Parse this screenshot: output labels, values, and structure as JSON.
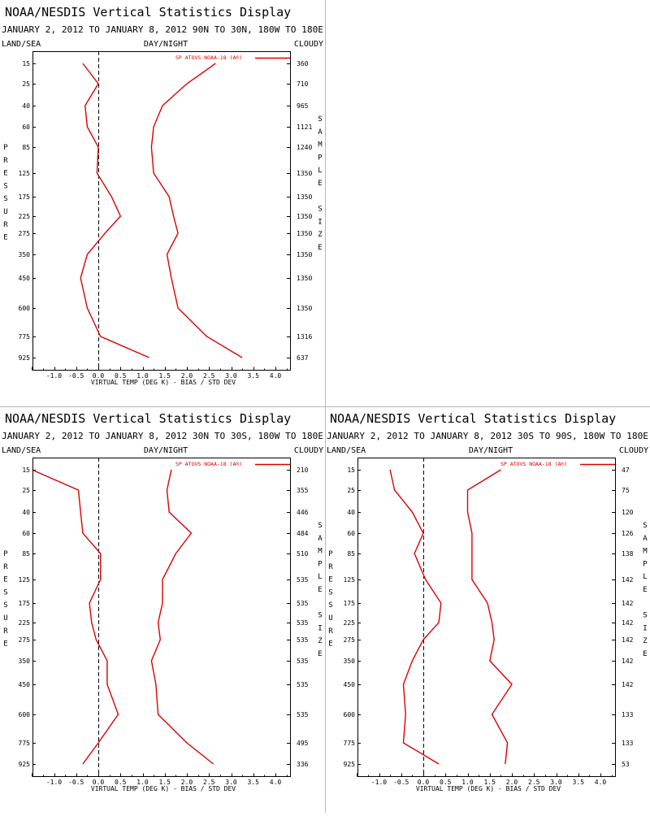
{
  "page": {
    "header_labels": {
      "left": "LAND/SEA",
      "center": "DAY/NIGHT",
      "right": "CLOUDY"
    },
    "y_axis_label": "PRESSURE",
    "right_axis_label": "SAMPLE SIZE",
    "x_axis_label": "VIRTUAL TEMP (DEG K) - BIAS / STD DEV",
    "legend_label": "SP ATOVS NOAA-18 (A®)",
    "series_color": "#dd0000"
  },
  "chart_data": [
    {
      "type": "line",
      "title": "NOAA/NESDIS Vertical Statistics Display",
      "subtitle": "JANUARY 2, 2012 TO JANUARY 8, 2012 90N TO 30N, 180W TO 180E",
      "pressure_levels": [
        15,
        25,
        40,
        60,
        85,
        125,
        175,
        225,
        275,
        350,
        450,
        600,
        775,
        925
      ],
      "pressure_ticks": [
        "15",
        "25",
        "40",
        "60",
        "85",
        "125",
        "175",
        "225",
        "275",
        "350",
        "450",
        "600",
        "775",
        "925"
      ],
      "sample_size": [
        "360",
        "710",
        "965",
        "1121",
        "1240",
        "1350",
        "1350",
        "1350",
        "1350",
        "1350",
        "1350",
        "1350",
        "1316",
        "637"
      ],
      "x_ticks": [
        "-1.0",
        "-0.5",
        "0.0",
        "0.5",
        "1.0",
        "1.5",
        "2.0",
        "2.5",
        "3.0",
        "3.5",
        "4.0"
      ],
      "xlim": [
        -1.5,
        4.3
      ],
      "bias": [
        -0.35,
        0.0,
        -0.3,
        -0.25,
        0.0,
        -0.03,
        0.3,
        0.5,
        0.15,
        -0.25,
        -0.4,
        -0.25,
        0.05,
        1.15
      ],
      "std_dev": [
        2.65,
        2.0,
        1.45,
        1.25,
        1.2,
        1.25,
        1.6,
        1.7,
        1.8,
        1.55,
        1.65,
        1.8,
        2.45,
        3.25
      ],
      "grid": false
    },
    {
      "type": "line",
      "title": "NOAA/NESDIS Vertical Statistics Display",
      "subtitle": "JANUARY 2, 2012 TO JANUARY 8, 2012 30N TO 30S, 180W TO 180E",
      "pressure_levels": [
        15,
        25,
        40,
        60,
        85,
        125,
        175,
        225,
        275,
        350,
        450,
        600,
        775,
        925
      ],
      "pressure_ticks": [
        "15",
        "25",
        "40",
        "60",
        "85",
        "125",
        "175",
        "225",
        "275",
        "350",
        "450",
        "600",
        "775",
        "925"
      ],
      "sample_size": [
        "210",
        "355",
        "446",
        "484",
        "510",
        "535",
        "535",
        "535",
        "535",
        "535",
        "535",
        "535",
        "495",
        "336"
      ],
      "x_ticks": [
        "-1.0",
        "-0.5",
        "0.0",
        "0.5",
        "1.0",
        "1.5",
        "2.0",
        "2.5",
        "3.0",
        "3.5",
        "4.0"
      ],
      "xlim": [
        -1.5,
        4.3
      ],
      "bias": [
        -1.5,
        -0.45,
        -0.4,
        -0.35,
        0.05,
        0.05,
        -0.2,
        -0.15,
        -0.05,
        0.2,
        0.2,
        0.45,
        0.0,
        -0.35
      ],
      "std_dev": [
        1.65,
        1.55,
        1.6,
        2.1,
        1.75,
        1.45,
        1.45,
        1.35,
        1.4,
        1.2,
        1.3,
        1.35,
        2.0,
        2.6
      ],
      "grid": false
    },
    {
      "type": "line",
      "title": "NOAA/NESDIS Vertical Statistics Display",
      "subtitle": "JANUARY 2, 2012 TO JANUARY 8, 2012 30S TO 90S, 180W TO 180E",
      "pressure_levels": [
        15,
        25,
        40,
        60,
        85,
        125,
        175,
        225,
        275,
        350,
        450,
        600,
        775,
        925
      ],
      "pressure_ticks": [
        "15",
        "25",
        "40",
        "60",
        "85",
        "125",
        "175",
        "225",
        "275",
        "350",
        "450",
        "600",
        "775",
        "925"
      ],
      "sample_size": [
        "47",
        "75",
        "120",
        "126",
        "138",
        "142",
        "142",
        "142",
        "142",
        "142",
        "142",
        "133",
        "133",
        "53"
      ],
      "x_ticks": [
        "-1.0",
        "-0.5",
        "0.0",
        "0.5",
        "1.0",
        "1.5",
        "2.0",
        "2.5",
        "3.0",
        "3.5",
        "4.0"
      ],
      "xlim": [
        -1.5,
        4.3
      ],
      "bias": [
        -0.75,
        -0.65,
        -0.25,
        0.0,
        -0.2,
        0.05,
        0.4,
        0.35,
        0.0,
        -0.25,
        -0.45,
        -0.4,
        -0.45,
        0.35
      ],
      "std_dev": [
        1.75,
        1.0,
        1.0,
        1.1,
        1.1,
        1.1,
        1.45,
        1.55,
        1.6,
        1.5,
        2.0,
        1.55,
        1.9,
        1.85
      ],
      "grid": false
    }
  ]
}
